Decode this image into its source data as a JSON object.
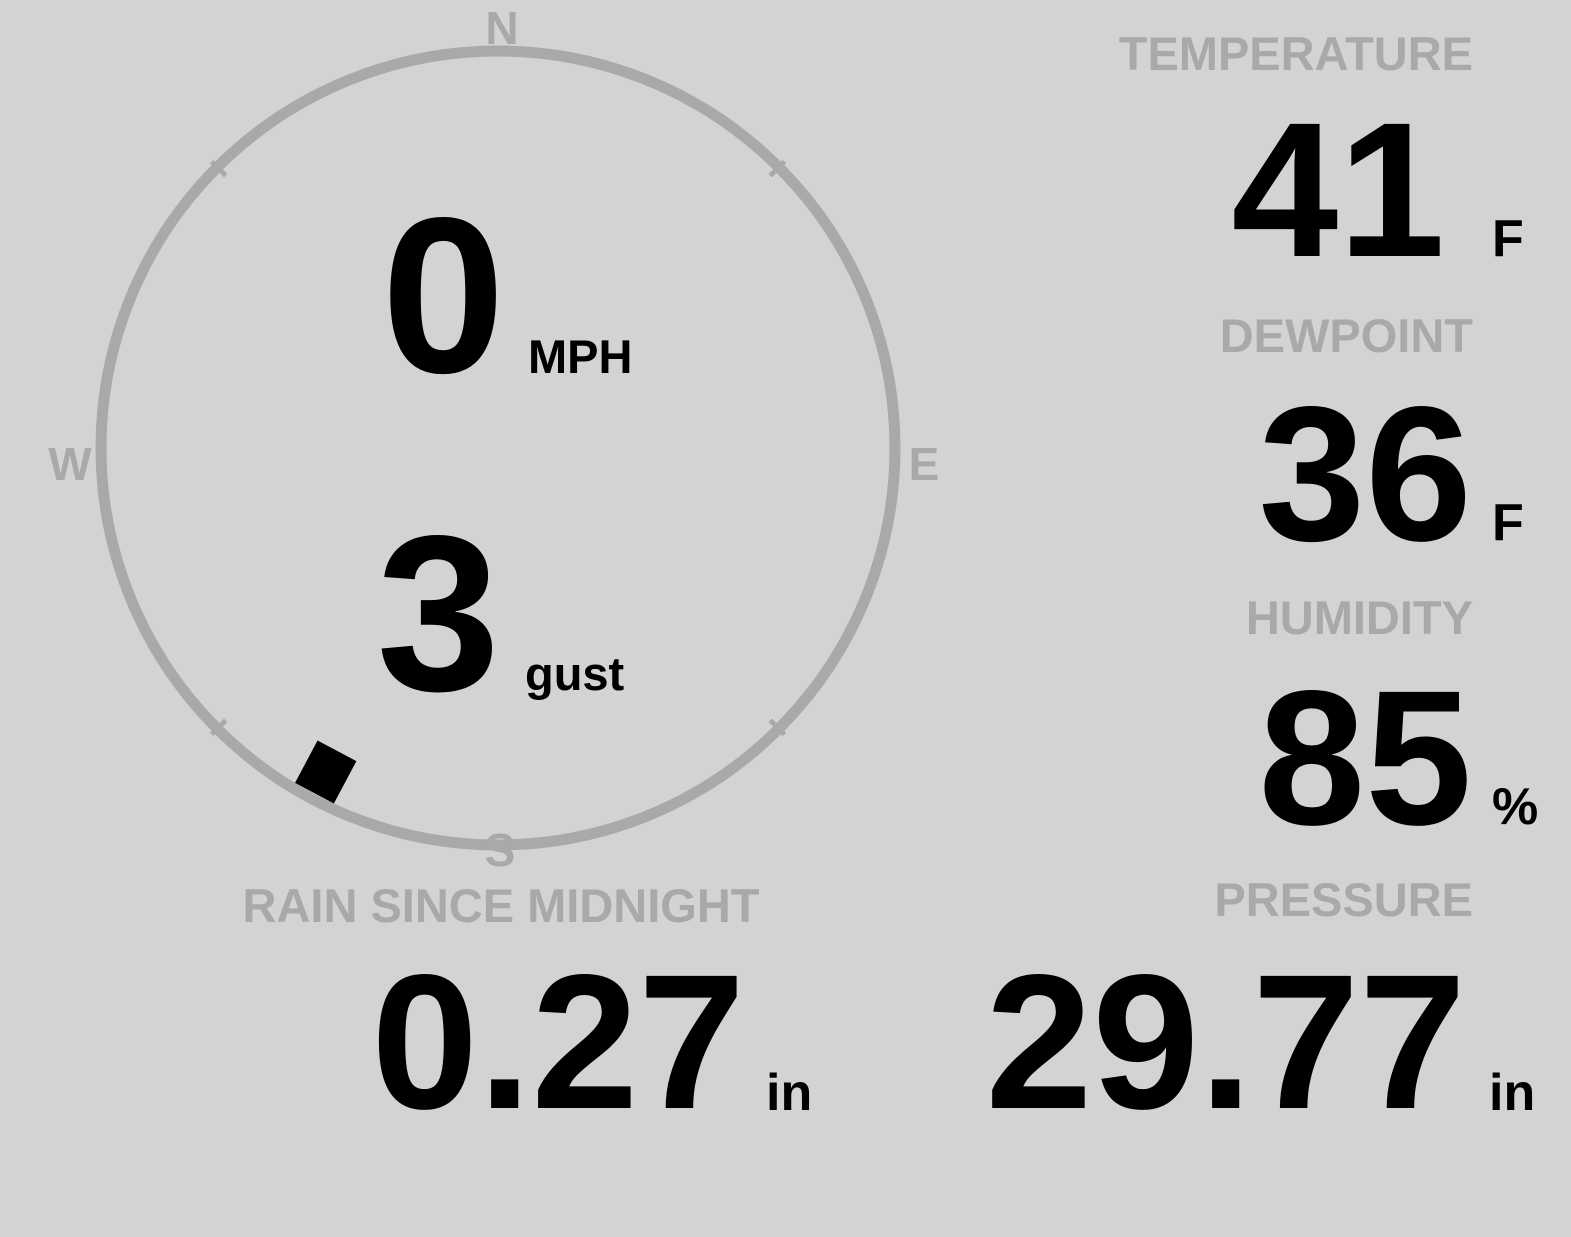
{
  "colors": {
    "background": "#d3d3d3",
    "label": "#a9a9a9",
    "value": "#000000",
    "compass_ring": "#a9a9a9",
    "direction_marker": "#000000"
  },
  "wind": {
    "compass": {
      "north": "N",
      "south": "S",
      "east": "E",
      "west": "W"
    },
    "direction_degrees": 208,
    "speed": "0",
    "speed_unit": "MPH",
    "gust": "3",
    "gust_unit": "gust"
  },
  "temperature": {
    "label": "TEMPERATURE",
    "value": "41",
    "unit": "F"
  },
  "dewpoint": {
    "label": "DEWPOINT",
    "value": "36",
    "unit": "F"
  },
  "humidity": {
    "label": "HUMIDITY",
    "value": "85",
    "unit": "%"
  },
  "rain": {
    "label": "RAIN SINCE MIDNIGHT",
    "value": "0.27",
    "unit": "in"
  },
  "pressure": {
    "label": "PRESSURE",
    "value": "29.77",
    "unit": "in"
  }
}
